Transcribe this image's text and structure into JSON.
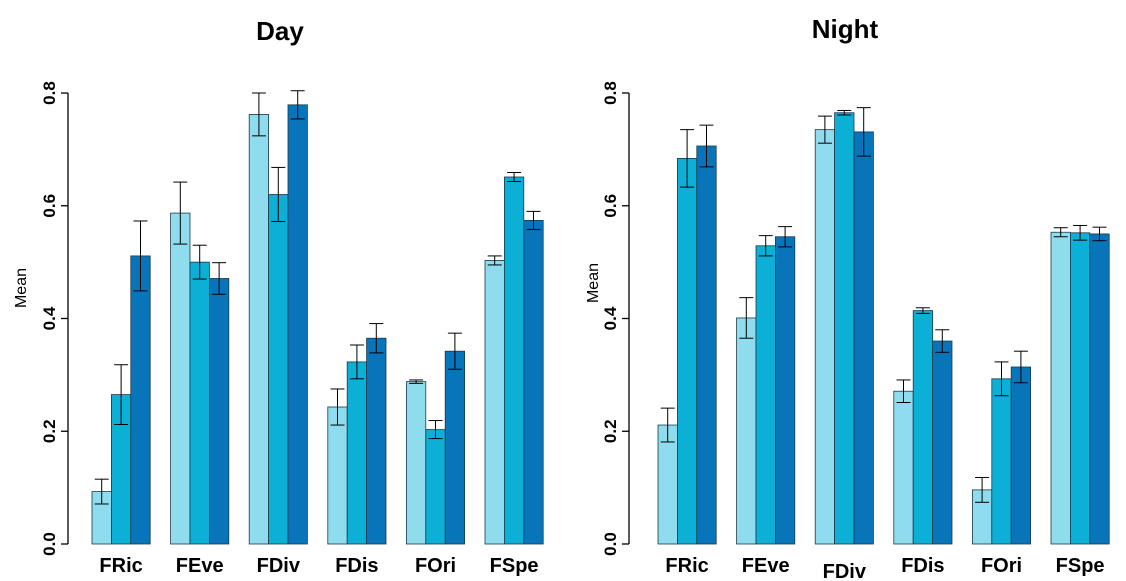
{
  "chart_data": [
    {
      "type": "bar",
      "title": "Day",
      "ylabel": "Mean",
      "xlabel": "",
      "ylim": [
        0,
        0.8
      ],
      "yticks": [
        "0.0",
        "0.2",
        "0.4",
        "0.6",
        "0.8"
      ],
      "categories": [
        "FRic",
        "FEve",
        "FDiv",
        "FDis",
        "FOri",
        "FSpe"
      ],
      "colors": [
        "#8fdcee",
        "#0cb0d6",
        "#0875bb"
      ],
      "series": [
        {
          "values": [
            0.093,
            0.587,
            0.762,
            0.243,
            0.288,
            0.503
          ],
          "errors": [
            0.022,
            0.055,
            0.038,
            0.032,
            0.003,
            0.008
          ]
        },
        {
          "values": [
            0.265,
            0.5,
            0.62,
            0.323,
            0.203,
            0.651
          ],
          "errors": [
            0.053,
            0.03,
            0.048,
            0.03,
            0.016,
            0.008
          ]
        },
        {
          "values": [
            0.511,
            0.471,
            0.779,
            0.365,
            0.342,
            0.574
          ],
          "errors": [
            0.062,
            0.028,
            0.025,
            0.026,
            0.032,
            0.016
          ]
        }
      ]
    },
    {
      "type": "bar",
      "title": "Night",
      "ylabel": "Mean",
      "xlabel": "",
      "ylim": [
        0,
        0.8
      ],
      "yticks": [
        "0.0",
        "0.2",
        "0.4",
        "0.6",
        "0.8"
      ],
      "categories": [
        "FRic",
        "FEve",
        "FDiv",
        "FDis",
        "FOri",
        "FSpe"
      ],
      "colors": [
        "#8fdcee",
        "#0cb0d6",
        "#0875bb"
      ],
      "series": [
        {
          "values": [
            0.211,
            0.401,
            0.735,
            0.271,
            0.096,
            0.553
          ],
          "errors": [
            0.03,
            0.036,
            0.024,
            0.02,
            0.022,
            0.008
          ]
        },
        {
          "values": [
            0.684,
            0.529,
            0.765,
            0.414,
            0.293,
            0.552
          ],
          "errors": [
            0.051,
            0.018,
            0.004,
            0.005,
            0.03,
            0.013
          ]
        },
        {
          "values": [
            0.706,
            0.545,
            0.731,
            0.36,
            0.314,
            0.55
          ],
          "errors": [
            0.037,
            0.018,
            0.043,
            0.02,
            0.028,
            0.012
          ]
        }
      ]
    }
  ]
}
